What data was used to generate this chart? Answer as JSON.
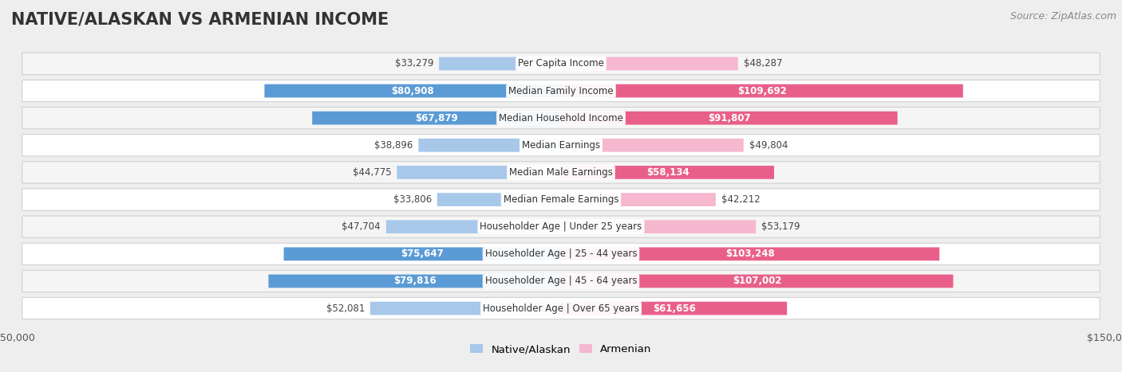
{
  "title": "NATIVE/ALASKAN VS ARMENIAN INCOME",
  "source": "Source: ZipAtlas.com",
  "categories": [
    "Per Capita Income",
    "Median Family Income",
    "Median Household Income",
    "Median Earnings",
    "Median Male Earnings",
    "Median Female Earnings",
    "Householder Age | Under 25 years",
    "Householder Age | 25 - 44 years",
    "Householder Age | 45 - 64 years",
    "Householder Age | Over 65 years"
  ],
  "native_values": [
    33279,
    80908,
    67879,
    38896,
    44775,
    33806,
    47704,
    75647,
    79816,
    52081
  ],
  "armenian_values": [
    48287,
    109692,
    91807,
    49804,
    58134,
    42212,
    53179,
    103248,
    107002,
    61656
  ],
  "native_labels": [
    "$33,279",
    "$80,908",
    "$67,879",
    "$38,896",
    "$44,775",
    "$33,806",
    "$47,704",
    "$75,647",
    "$79,816",
    "$52,081"
  ],
  "armenian_labels": [
    "$48,287",
    "$109,692",
    "$91,807",
    "$49,804",
    "$58,134",
    "$42,212",
    "$53,179",
    "$103,248",
    "$107,002",
    "$61,656"
  ],
  "native_color_light": "#a8c8ea",
  "native_color_dark": "#5b9bd5",
  "armenian_color_light": "#f5b8cf",
  "armenian_color_dark": "#e8608a",
  "axis_limit": 150000,
  "background_color": "#eeeeee",
  "row_bg_even": "#f5f5f5",
  "row_bg_odd": "#ffffff",
  "row_border_color": "#cccccc",
  "title_fontsize": 15,
  "label_fontsize": 8.5,
  "category_fontsize": 8.5,
  "legend_fontsize": 9.5,
  "source_fontsize": 9,
  "large_threshold": 0.38
}
